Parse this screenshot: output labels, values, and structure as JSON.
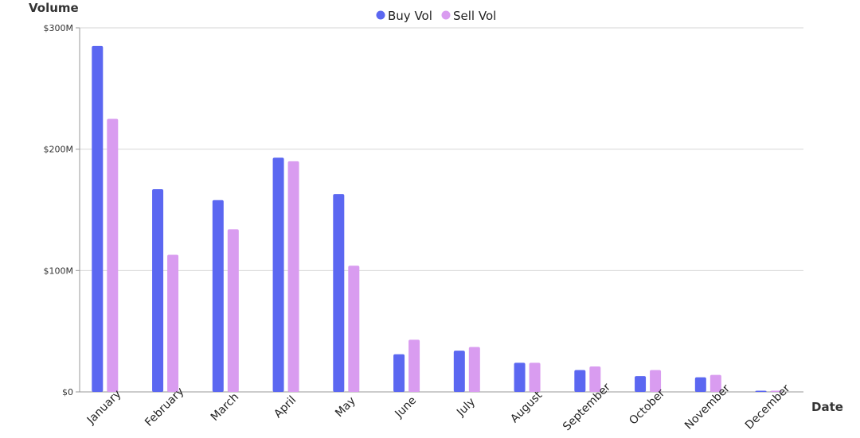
{
  "chart_data": {
    "type": "bar",
    "xlabel": "Date",
    "ylabel": "Volume",
    "ylim": [
      0,
      300000000
    ],
    "yticks": [
      {
        "value": 0,
        "label": "$0"
      },
      {
        "value": 100000000,
        "label": "$100M"
      },
      {
        "value": 200000000,
        "label": "$200M"
      },
      {
        "value": 300000000,
        "label": "$300M"
      }
    ],
    "categories": [
      "January",
      "February",
      "March",
      "April",
      "May",
      "June",
      "July",
      "August",
      "September",
      "October",
      "November",
      "December"
    ],
    "series": [
      {
        "name": "Buy Vol",
        "color": "#5b67f1",
        "values": [
          285000000,
          167000000,
          158000000,
          193000000,
          163000000,
          31000000,
          34000000,
          24000000,
          18000000,
          13000000,
          12000000,
          1000000
        ]
      },
      {
        "name": "Sell Vol",
        "color": "#d99cf0",
        "values": [
          225000000,
          113000000,
          134000000,
          190000000,
          104000000,
          43000000,
          37000000,
          24000000,
          21000000,
          18000000,
          14000000,
          1000000
        ]
      }
    ],
    "legend_position": "top-center",
    "grid": true
  }
}
